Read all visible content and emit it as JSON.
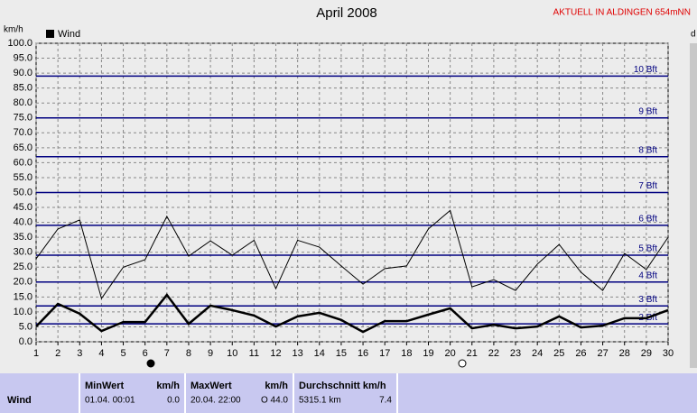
{
  "chart_data": {
    "type": "line",
    "title": "April 2008",
    "subtitle": "AKTUELL IN ALDINGEN 654mNN",
    "y_axis_label": "km/h",
    "y2_axis_label": "d",
    "categories": [
      "1",
      "2",
      "3",
      "4",
      "5",
      "6",
      "7",
      "8",
      "9",
      "10",
      "11",
      "12",
      "13",
      "14",
      "15",
      "16",
      "17",
      "18",
      "19",
      "20",
      "21",
      "22",
      "23",
      "24",
      "25",
      "26",
      "27",
      "28",
      "29",
      "30"
    ],
    "series": [
      {
        "name": "Wind",
        "color": "#000000",
        "values": [
          5.1,
          12.7,
          9.4,
          3.6,
          6.6,
          6.6,
          15.7,
          6.0,
          12.1,
          10.6,
          8.8,
          5.1,
          8.5,
          9.7,
          7.3,
          3.3,
          6.9,
          6.9,
          9.1,
          11.2,
          4.5,
          5.7,
          4.5,
          5.1,
          8.5,
          4.8,
          5.4,
          7.9,
          7.9,
          10.6
        ]
      },
      {
        "color": "#000000",
        "values": [
          27.8,
          37.8,
          40.8,
          14.5,
          25.0,
          27.5,
          42.0,
          28.7,
          33.8,
          29.0,
          34.0,
          17.8,
          34.0,
          31.7,
          25.4,
          19.3,
          24.5,
          25.4,
          37.8,
          44.0,
          18.4,
          20.8,
          17.2,
          26.0,
          32.6,
          23.3,
          17.2,
          29.6,
          24.2,
          35.0
        ]
      }
    ],
    "ylim": [
      0,
      100
    ],
    "yticks": [
      {
        "value": 0,
        "label": "0.0"
      },
      {
        "value": 5,
        "label": "5.0"
      },
      {
        "value": 10,
        "label": "10.0"
      },
      {
        "value": 15,
        "label": "15.0"
      },
      {
        "value": 20,
        "label": "20.0"
      },
      {
        "value": 25,
        "label": "25.0"
      },
      {
        "value": 30,
        "label": "30.0"
      },
      {
        "value": 35,
        "label": "35.0"
      },
      {
        "value": 40,
        "label": "40.0"
      },
      {
        "value": 45,
        "label": "45.0"
      },
      {
        "value": 50,
        "label": "50.0"
      },
      {
        "value": 55,
        "label": "55.0"
      },
      {
        "value": 60,
        "label": "60.0"
      },
      {
        "value": 65,
        "label": "65.0"
      },
      {
        "value": 70,
        "label": "70.0"
      },
      {
        "value": 75,
        "label": "75.0"
      },
      {
        "value": 80,
        "label": "80.0"
      },
      {
        "value": 85,
        "label": "85.0"
      },
      {
        "value": 90,
        "label": "90.0"
      },
      {
        "value": 95,
        "label": "95.0"
      },
      {
        "value": 100,
        "label": "100.0"
      }
    ],
    "grid": true,
    "reference_lines": [
      {
        "value": 6,
        "label": "2 Bft"
      },
      {
        "value": 12,
        "label": "3 Bft"
      },
      {
        "value": 20,
        "label": "4 Bft"
      },
      {
        "value": 29,
        "label": "5 Bft"
      },
      {
        "value": 39,
        "label": "6 Bft"
      },
      {
        "value": 50,
        "label": "7 Bft"
      },
      {
        "value": 62,
        "label": "8 Bft"
      },
      {
        "value": 75,
        "label": "9 Bft"
      },
      {
        "value": 89,
        "label": "10 Bft"
      }
    ],
    "reference_color": "#000080"
  },
  "table": {
    "row_label": "Wind",
    "columns": [
      {
        "header": "MinWert",
        "unit": "km/h",
        "time": "01.04.  00:01",
        "value": "0.0"
      },
      {
        "header": "MaxWert",
        "unit": "km/h",
        "time": "20.04.  22:00",
        "value": "O 44.0"
      },
      {
        "header": "Durchschnitt km/h",
        "unit": "",
        "time": "5315.1 km",
        "value": "7.4"
      }
    ]
  }
}
